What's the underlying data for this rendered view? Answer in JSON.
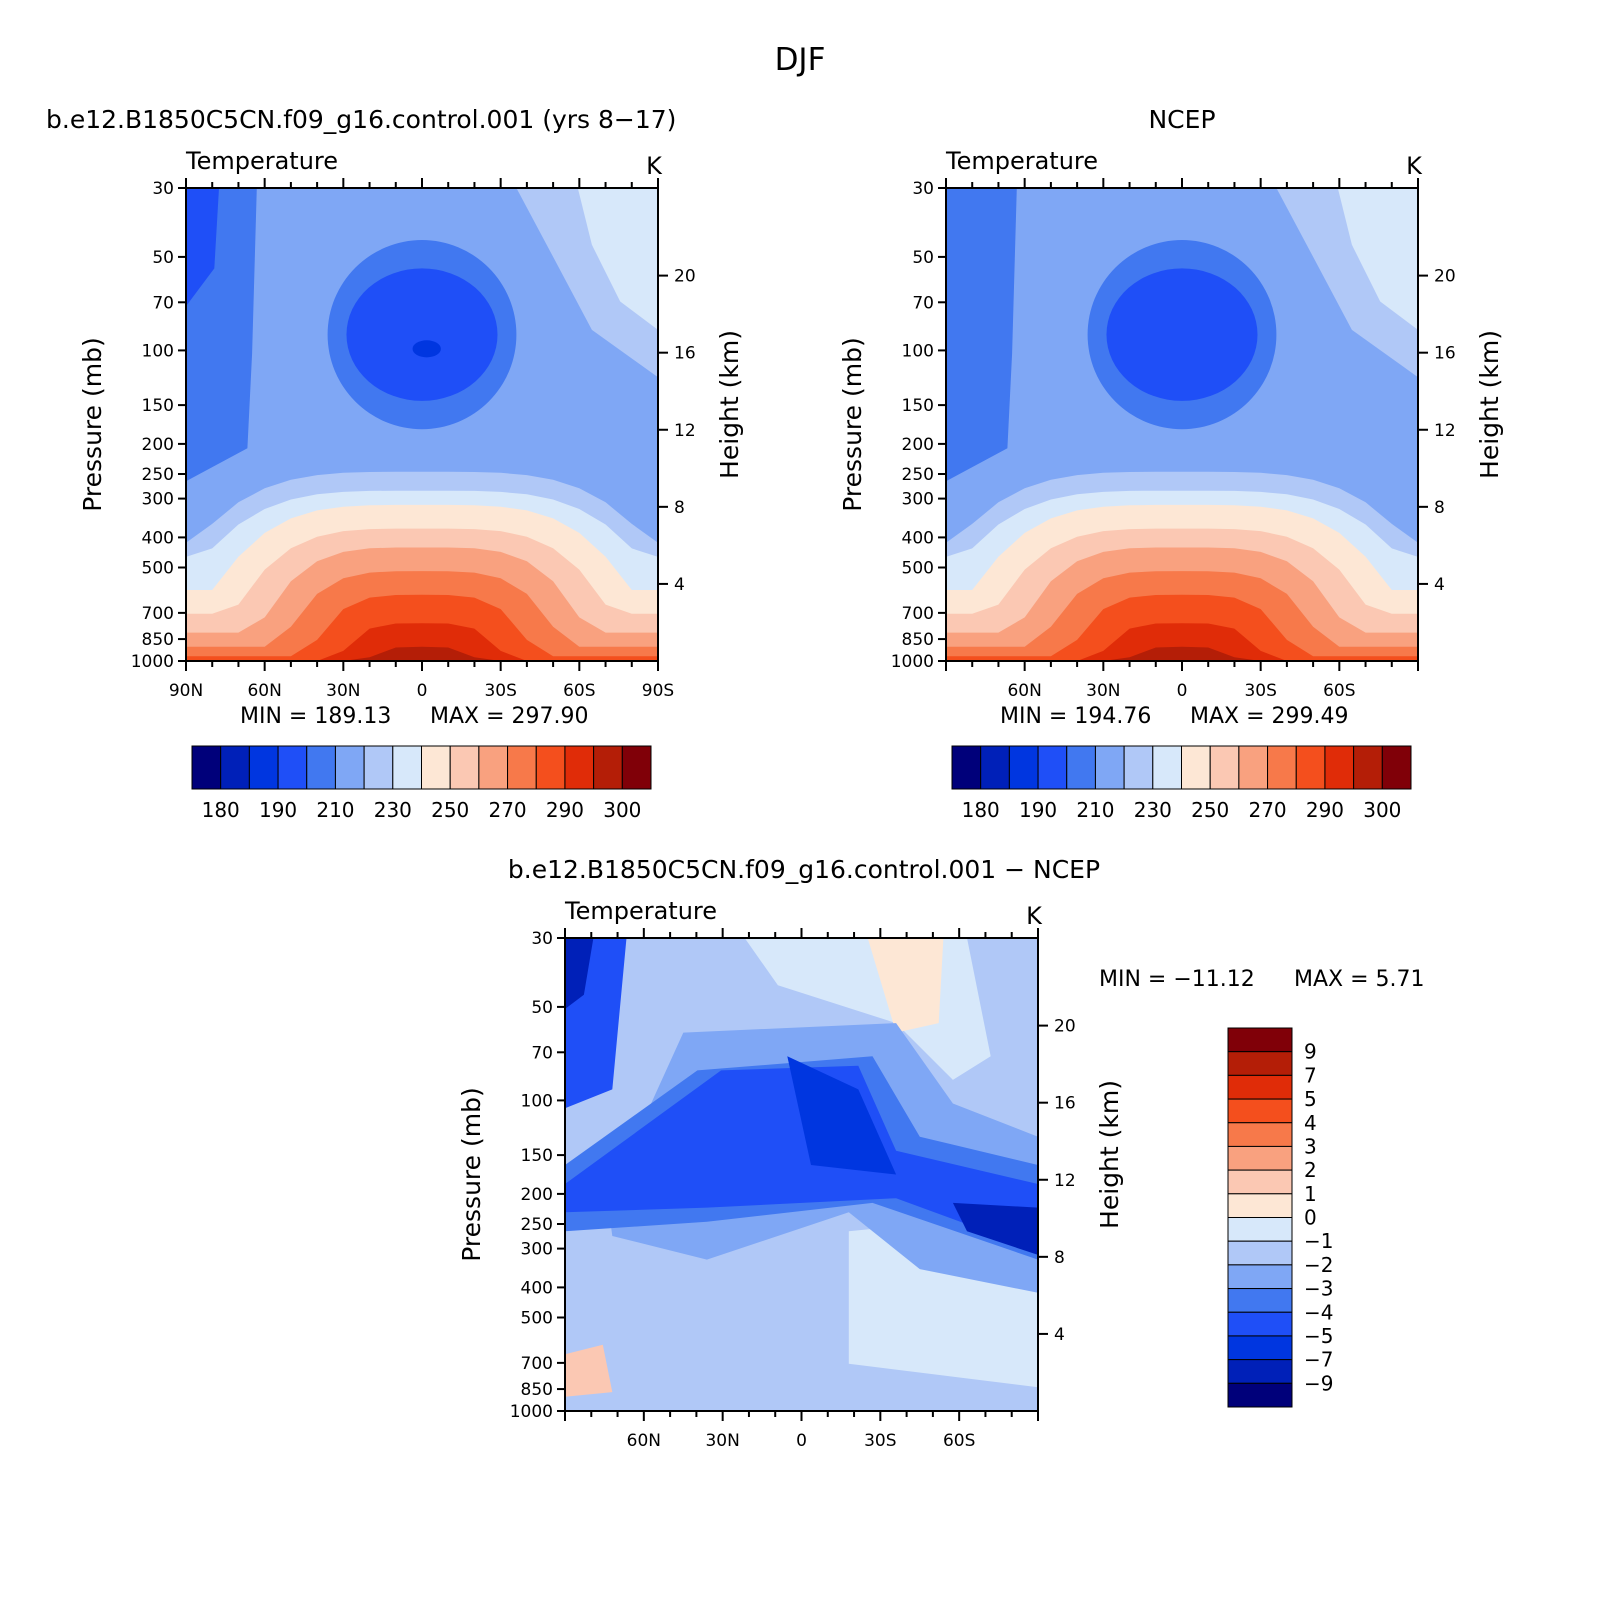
{
  "figure": {
    "title": "DJF"
  },
  "chart_data": [
    {
      "type": "heatmap",
      "id": "model",
      "title": "b.e12.B1850C5CN.f09_g16.control.001 (yrs 8-17)",
      "subtitle": "Temperature",
      "units": "K",
      "ylabel": "Pressure (mb)",
      "ylabel_right": "Height (km)",
      "x_tick_labels": [
        "90N",
        "60N",
        "30N",
        "0",
        "30S",
        "60S",
        "90S"
      ],
      "x_tick_values": [
        90,
        60,
        30,
        0,
        -30,
        -60,
        -90
      ],
      "xlim": [
        90,
        -90
      ],
      "y_tick_labels": [
        "30",
        "50",
        "70",
        "100",
        "150",
        "200",
        "250",
        "300",
        "400",
        "500",
        "700",
        "850",
        "1000"
      ],
      "y_tick_values": [
        30,
        50,
        70,
        100,
        150,
        200,
        250,
        300,
        400,
        500,
        700,
        850,
        1000
      ],
      "ylim": [
        1000,
        30
      ],
      "y_scale": "log",
      "height_ticks": [
        "20",
        "16",
        "12",
        "8",
        "4"
      ],
      "height_values_km": [
        20,
        16,
        12,
        8,
        4
      ],
      "min_label": "MIN = 189.13",
      "max_label": "MAX = 297.90",
      "min": 189.13,
      "max": 297.9,
      "colorbar": {
        "orientation": "horizontal",
        "colors": [
          "#00007a",
          "#0020b8",
          "#0036e0",
          "#1f4ff7",
          "#4178f0",
          "#7fa7f5",
          "#b0c8f7",
          "#d7e8fa",
          "#fde7d5",
          "#fbc8b3",
          "#f9a17f",
          "#f7794a",
          "#f44f1d",
          "#e02c08",
          "#b41e07",
          "#800008"
        ],
        "labels": [
          "180",
          "190",
          "210",
          "230",
          "250",
          "270",
          "290",
          "300"
        ]
      }
    },
    {
      "type": "heatmap",
      "id": "obs",
      "title": "NCEP",
      "subtitle": "Temperature",
      "units": "K",
      "ylabel": "Pressure (mb)",
      "ylabel_right": "Height (km)",
      "x_tick_labels": [
        "60N",
        "30N",
        "0",
        "30S",
        "60S"
      ],
      "x_tick_values": [
        60,
        30,
        0,
        -30,
        -60
      ],
      "xlim": [
        90,
        -90
      ],
      "y_tick_labels": [
        "30",
        "50",
        "70",
        "100",
        "150",
        "200",
        "250",
        "300",
        "400",
        "500",
        "700",
        "850",
        "1000"
      ],
      "y_tick_values": [
        30,
        50,
        70,
        100,
        150,
        200,
        250,
        300,
        400,
        500,
        700,
        850,
        1000
      ],
      "ylim": [
        1000,
        30
      ],
      "y_scale": "log",
      "height_ticks": [
        "20",
        "16",
        "12",
        "8",
        "4"
      ],
      "height_values_km": [
        20,
        16,
        12,
        8,
        4
      ],
      "min_label": "MIN = 194.76",
      "max_label": "MAX = 299.49",
      "min": 194.76,
      "max": 299.49,
      "colorbar": {
        "orientation": "horizontal",
        "colors": [
          "#00007a",
          "#0020b8",
          "#0036e0",
          "#1f4ff7",
          "#4178f0",
          "#7fa7f5",
          "#b0c8f7",
          "#d7e8fa",
          "#fde7d5",
          "#fbc8b3",
          "#f9a17f",
          "#f7794a",
          "#f44f1d",
          "#e02c08",
          "#b41e07",
          "#800008"
        ],
        "labels": [
          "180",
          "190",
          "210",
          "230",
          "250",
          "270",
          "290",
          "300"
        ]
      }
    },
    {
      "type": "heatmap",
      "id": "diff",
      "title": "b.e12.B1850C5CN.f09_g16.control.001 - NCEP",
      "subtitle": "Temperature",
      "units": "K",
      "ylabel": "Pressure (mb)",
      "ylabel_right": "Height (km)",
      "x_tick_labels": [
        "60N",
        "30N",
        "0",
        "30S",
        "60S"
      ],
      "x_tick_values": [
        60,
        30,
        0,
        -30,
        -60
      ],
      "xlim": [
        90,
        -90
      ],
      "y_tick_labels": [
        "30",
        "50",
        "70",
        "100",
        "150",
        "200",
        "250",
        "300",
        "400",
        "500",
        "700",
        "850",
        "1000"
      ],
      "y_tick_values": [
        30,
        50,
        70,
        100,
        150,
        200,
        250,
        300,
        400,
        500,
        700,
        850,
        1000
      ],
      "ylim": [
        1000,
        30
      ],
      "y_scale": "log",
      "height_ticks": [
        "20",
        "16",
        "12",
        "8",
        "4"
      ],
      "height_values_km": [
        20,
        16,
        12,
        8,
        4
      ],
      "min_label": "MIN = -11.12",
      "max_label": "MAX = 5.71",
      "min": -11.12,
      "max": 5.71,
      "colorbar": {
        "orientation": "vertical",
        "colors_top_to_bottom": [
          "#800008",
          "#b41e07",
          "#e02c08",
          "#f44f1d",
          "#f7794a",
          "#f9a17f",
          "#fbc8b3",
          "#fde7d5",
          "#d7e8fa",
          "#b0c8f7",
          "#7fa7f5",
          "#4178f0",
          "#1f4ff7",
          "#0036e0",
          "#0020b8",
          "#00007a"
        ],
        "labels_top_to_bottom": [
          "9",
          "7",
          "5",
          "4",
          "3",
          "2",
          "1",
          "0",
          "-1",
          "-2",
          "-3",
          "-4",
          "-5",
          "-7",
          "-9"
        ]
      }
    }
  ]
}
